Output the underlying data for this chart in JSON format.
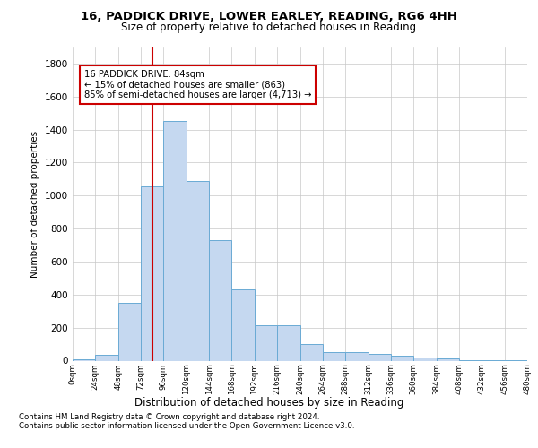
{
  "title_line1": "16, PADDICK DRIVE, LOWER EARLEY, READING, RG6 4HH",
  "title_line2": "Size of property relative to detached houses in Reading",
  "xlabel": "Distribution of detached houses by size in Reading",
  "ylabel": "Number of detached properties",
  "bin_edges": [
    0,
    24,
    48,
    72,
    96,
    120,
    144,
    168,
    192,
    216,
    240,
    264,
    288,
    312,
    336,
    360,
    384,
    408,
    432,
    456,
    480
  ],
  "bar_heights": [
    10,
    35,
    350,
    1055,
    1450,
    1090,
    730,
    430,
    215,
    215,
    100,
    50,
    50,
    40,
    30,
    20,
    15,
    5,
    5,
    2
  ],
  "bar_color": "#c5d8f0",
  "bar_edge_color": "#6aaad4",
  "grid_color": "#c8c8c8",
  "background_color": "#ffffff",
  "property_sqm": 84,
  "vline_color": "#cc0000",
  "annotation_text": "16 PADDICK DRIVE: 84sqm\n← 15% of detached houses are smaller (863)\n85% of semi-detached houses are larger (4,713) →",
  "annotation_box_edge": "#cc0000",
  "footnote1": "Contains HM Land Registry data © Crown copyright and database right 2024.",
  "footnote2": "Contains public sector information licensed under the Open Government Licence v3.0.",
  "ylim": [
    0,
    1900
  ],
  "yticks": [
    0,
    200,
    400,
    600,
    800,
    1000,
    1200,
    1400,
    1600,
    1800
  ]
}
